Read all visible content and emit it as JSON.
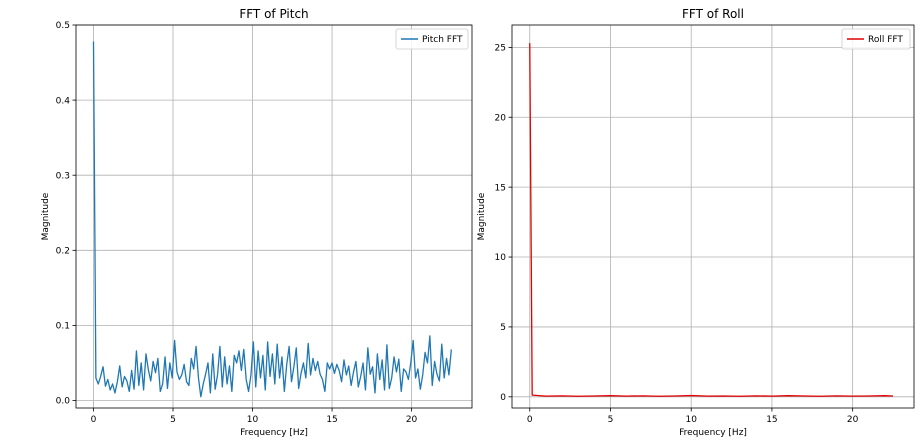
{
  "chart_data": [
    {
      "type": "line",
      "title": "FFT of Pitch",
      "xlabel": "Frequency [Hz]",
      "ylabel": "Magnitude",
      "xlim": [
        -1.1,
        23.8
      ],
      "ylim": [
        -0.01,
        0.5
      ],
      "xticks": [
        0,
        5,
        10,
        15,
        20
      ],
      "yticks": [
        0.0,
        0.1,
        0.2,
        0.3,
        0.4,
        0.5
      ],
      "ytick_labels": [
        "0.0",
        "0.1",
        "0.2",
        "0.3",
        "0.4",
        "0.5"
      ],
      "grid": true,
      "legend": "top-right",
      "series": [
        {
          "name": "Pitch FFT",
          "color": "#1f77b4",
          "x": [
            0.0,
            0.15,
            0.3,
            0.45,
            0.6,
            0.75,
            0.9,
            1.05,
            1.2,
            1.35,
            1.5,
            1.65,
            1.8,
            1.95,
            2.1,
            2.25,
            2.4,
            2.55,
            2.7,
            2.85,
            3.0,
            3.15,
            3.3,
            3.45,
            3.6,
            3.75,
            3.9,
            4.05,
            4.2,
            4.35,
            4.5,
            4.65,
            4.8,
            4.95,
            5.1,
            5.25,
            5.4,
            5.55,
            5.7,
            5.85,
            6.0,
            6.15,
            6.3,
            6.45,
            6.6,
            6.75,
            6.9,
            7.05,
            7.2,
            7.35,
            7.5,
            7.65,
            7.8,
            7.95,
            8.1,
            8.25,
            8.4,
            8.55,
            8.7,
            8.85,
            9.0,
            9.15,
            9.3,
            9.45,
            9.6,
            9.75,
            9.9,
            10.05,
            10.2,
            10.35,
            10.5,
            10.65,
            10.8,
            10.95,
            11.1,
            11.25,
            11.4,
            11.55,
            11.7,
            11.85,
            12.0,
            12.15,
            12.3,
            12.45,
            12.6,
            12.75,
            12.9,
            13.05,
            13.2,
            13.35,
            13.5,
            13.65,
            13.8,
            13.95,
            14.1,
            14.25,
            14.4,
            14.55,
            14.7,
            14.85,
            15.0,
            15.15,
            15.3,
            15.45,
            15.6,
            15.75,
            15.9,
            16.05,
            16.2,
            16.35,
            16.5,
            16.65,
            16.8,
            16.95,
            17.1,
            17.25,
            17.4,
            17.55,
            17.7,
            17.85,
            18.0,
            18.15,
            18.3,
            18.45,
            18.6,
            18.75,
            18.9,
            19.05,
            19.2,
            19.35,
            19.5,
            19.65,
            19.8,
            19.95,
            20.1,
            20.25,
            20.4,
            20.55,
            20.7,
            20.85,
            21.0,
            21.15,
            21.3,
            21.45,
            21.6,
            21.75,
            21.9,
            22.05,
            22.2,
            22.35,
            22.5
          ],
          "y": [
            0.478,
            0.03,
            0.022,
            0.032,
            0.045,
            0.019,
            0.028,
            0.014,
            0.022,
            0.01,
            0.025,
            0.046,
            0.018,
            0.032,
            0.026,
            0.012,
            0.04,
            0.015,
            0.066,
            0.02,
            0.05,
            0.014,
            0.062,
            0.041,
            0.026,
            0.052,
            0.037,
            0.056,
            0.012,
            0.022,
            0.058,
            0.016,
            0.05,
            0.03,
            0.08,
            0.038,
            0.028,
            0.034,
            0.048,
            0.025,
            0.02,
            0.056,
            0.042,
            0.072,
            0.03,
            0.005,
            0.022,
            0.035,
            0.05,
            0.01,
            0.062,
            0.015,
            0.034,
            0.072,
            0.018,
            0.058,
            0.022,
            0.046,
            0.012,
            0.06,
            0.05,
            0.066,
            0.04,
            0.068,
            0.028,
            0.012,
            0.034,
            0.078,
            0.018,
            0.066,
            0.03,
            0.06,
            0.014,
            0.078,
            0.032,
            0.062,
            0.022,
            0.075,
            0.03,
            0.058,
            0.012,
            0.048,
            0.072,
            0.025,
            0.045,
            0.07,
            0.016,
            0.036,
            0.05,
            0.03,
            0.076,
            0.034,
            0.056,
            0.04,
            0.052,
            0.035,
            0.028,
            0.012,
            0.05,
            0.042,
            0.05,
            0.036,
            0.048,
            0.04,
            0.025,
            0.054,
            0.034,
            0.046,
            0.02,
            0.038,
            0.052,
            0.018,
            0.032,
            0.05,
            0.014,
            0.07,
            0.035,
            0.045,
            0.01,
            0.062,
            0.028,
            0.054,
            0.014,
            0.074,
            0.016,
            0.03,
            0.058,
            0.038,
            0.055,
            0.012,
            0.042,
            0.038,
            0.028,
            0.05,
            0.08,
            0.03,
            0.042,
            0.015,
            0.034,
            0.064,
            0.05,
            0.086,
            0.02,
            0.052,
            0.035,
            0.026,
            0.075,
            0.03,
            0.056,
            0.034,
            0.068
          ],
          "peak_label": null
        }
      ]
    },
    {
      "type": "line",
      "title": "FFT of Roll",
      "xlabel": "Frequency [Hz]",
      "ylabel": "Magnitude",
      "xlim": [
        -1.1,
        23.8
      ],
      "ylim": [
        -0.8,
        26.6
      ],
      "xticks": [
        0,
        5,
        10,
        15,
        20
      ],
      "yticks": [
        0,
        5,
        10,
        15,
        20,
        25
      ],
      "ytick_labels": [
        "0",
        "5",
        "10",
        "15",
        "20",
        "25"
      ],
      "grid": true,
      "legend": "top-right",
      "series": [
        {
          "name": "Roll FFT",
          "color": "#e00000",
          "x": [
            0.0,
            0.15,
            1.0,
            2.0,
            3.0,
            4.0,
            5.0,
            6.0,
            7.0,
            8.0,
            9.0,
            10.0,
            11.0,
            12.0,
            13.0,
            14.0,
            15.0,
            16.0,
            17.0,
            18.0,
            19.0,
            20.0,
            21.0,
            22.0,
            22.5
          ],
          "y": [
            25.3,
            0.12,
            0.05,
            0.07,
            0.04,
            0.06,
            0.08,
            0.05,
            0.07,
            0.04,
            0.06,
            0.09,
            0.05,
            0.06,
            0.04,
            0.07,
            0.05,
            0.08,
            0.06,
            0.04,
            0.07,
            0.05,
            0.06,
            0.08,
            0.06
          ]
        }
      ]
    }
  ]
}
